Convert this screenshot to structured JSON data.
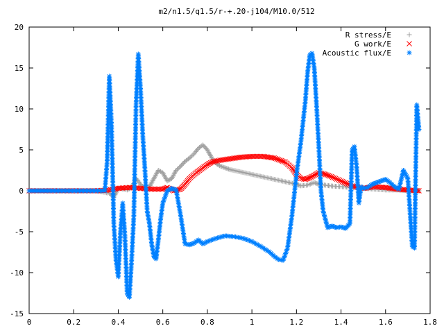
{
  "chart_data": {
    "type": "scatter",
    "title": "m2/n1.5/q1.5/r-+.20-j104/M10.0/512",
    "xlabel": "",
    "ylabel": "",
    "xlim": [
      0,
      1.8
    ],
    "ylim": [
      -15,
      20
    ],
    "x_ticks": [
      "0",
      "0.2",
      "0.4",
      "0.6",
      "0.8",
      "1",
      "1.2",
      "1.4",
      "1.6",
      "1.8"
    ],
    "y_ticks": [
      "20",
      "15",
      "10",
      "5",
      "0",
      "-5",
      "-10",
      "-15"
    ],
    "grid": false,
    "legend_position": "top-right",
    "series": [
      {
        "name": "R stress/E",
        "marker": "plus",
        "color": "#a0a0a0",
        "x": [
          0.0,
          0.1,
          0.2,
          0.3,
          0.36,
          0.38,
          0.4,
          0.42,
          0.44,
          0.46,
          0.48,
          0.5,
          0.52,
          0.54,
          0.56,
          0.58,
          0.6,
          0.62,
          0.64,
          0.66,
          0.68,
          0.7,
          0.72,
          0.74,
          0.76,
          0.78,
          0.8,
          0.82,
          0.84,
          0.86,
          0.88,
          0.9,
          0.95,
          1.0,
          1.05,
          1.1,
          1.15,
          1.2,
          1.22,
          1.25,
          1.28,
          1.3,
          1.35,
          1.4,
          1.45,
          1.5,
          1.55,
          1.6,
          1.65,
          1.7,
          1.75
        ],
        "y": [
          0.0,
          0.0,
          0.0,
          0.0,
          -0.3,
          -0.8,
          0.3,
          0.2,
          0.1,
          0.4,
          1.5,
          0.8,
          0.2,
          0.5,
          1.5,
          2.5,
          2.2,
          1.2,
          1.5,
          2.5,
          3.0,
          3.6,
          4.0,
          4.5,
          5.2,
          5.6,
          5.0,
          4.0,
          3.3,
          3.0,
          2.8,
          2.6,
          2.3,
          2.0,
          1.7,
          1.4,
          1.1,
          0.8,
          0.6,
          0.7,
          1.0,
          0.8,
          0.6,
          0.5,
          0.4,
          0.3,
          0.2,
          0.1,
          0.1,
          0.0,
          0.0
        ]
      },
      {
        "name": "G work/E",
        "marker": "cross",
        "color": "#ff0000",
        "x": [
          0.0,
          0.1,
          0.2,
          0.3,
          0.36,
          0.4,
          0.45,
          0.5,
          0.55,
          0.6,
          0.62,
          0.65,
          0.68,
          0.7,
          0.72,
          0.75,
          0.78,
          0.8,
          0.82,
          0.85,
          0.9,
          0.95,
          1.0,
          1.05,
          1.1,
          1.15,
          1.18,
          1.2,
          1.22,
          1.24,
          1.26,
          1.28,
          1.3,
          1.32,
          1.35,
          1.4,
          1.45,
          1.5,
          1.55,
          1.6,
          1.65,
          1.7,
          1.75
        ],
        "y": [
          0.0,
          0.0,
          0.0,
          0.0,
          0.1,
          0.3,
          0.4,
          0.3,
          0.2,
          0.2,
          0.4,
          0.0,
          0.2,
          0.8,
          1.5,
          2.2,
          2.8,
          3.2,
          3.5,
          3.7,
          3.9,
          4.1,
          4.2,
          4.2,
          4.0,
          3.5,
          2.8,
          2.0,
          1.5,
          1.4,
          1.6,
          1.9,
          2.2,
          2.1,
          1.8,
          1.2,
          0.6,
          0.3,
          0.5,
          0.4,
          0.2,
          0.1,
          0.0
        ]
      },
      {
        "name": "Acoustic flux/E",
        "marker": "star",
        "color": "#0080ff",
        "x": [
          0.0,
          0.05,
          0.1,
          0.15,
          0.2,
          0.25,
          0.3,
          0.34,
          0.35,
          0.36,
          0.37,
          0.38,
          0.39,
          0.4,
          0.41,
          0.42,
          0.43,
          0.44,
          0.45,
          0.46,
          0.47,
          0.48,
          0.49,
          0.5,
          0.51,
          0.52,
          0.53,
          0.54,
          0.55,
          0.56,
          0.57,
          0.58,
          0.59,
          0.6,
          0.62,
          0.64,
          0.66,
          0.68,
          0.7,
          0.72,
          0.74,
          0.76,
          0.78,
          0.8,
          0.84,
          0.88,
          0.92,
          0.96,
          1.0,
          1.04,
          1.08,
          1.1,
          1.12,
          1.14,
          1.16,
          1.18,
          1.2,
          1.22,
          1.24,
          1.25,
          1.26,
          1.27,
          1.28,
          1.29,
          1.3,
          1.31,
          1.32,
          1.33,
          1.34,
          1.36,
          1.38,
          1.4,
          1.42,
          1.44,
          1.45,
          1.46,
          1.47,
          1.48,
          1.49,
          1.5,
          1.52,
          1.54,
          1.56,
          1.58,
          1.6,
          1.62,
          1.64,
          1.66,
          1.68,
          1.7,
          1.72,
          1.73,
          1.74,
          1.75
        ],
        "y": [
          0.0,
          0.0,
          0.0,
          0.0,
          0.0,
          0.0,
          0.0,
          0.0,
          3.5,
          14.0,
          7.8,
          -4.0,
          -8.5,
          -10.5,
          -5.0,
          -1.5,
          -5.5,
          -12.5,
          -13.0,
          -8.5,
          -3.0,
          10.5,
          16.7,
          12.5,
          6.8,
          2.5,
          -2.5,
          -4.0,
          -6.5,
          -8.0,
          -8.3,
          -6.0,
          -3.5,
          -1.5,
          0.0,
          0.3,
          0.1,
          -3.0,
          -6.5,
          -6.6,
          -6.4,
          -6.0,
          -6.5,
          -6.2,
          -5.8,
          -5.5,
          -5.6,
          -5.8,
          -6.2,
          -6.8,
          -7.5,
          -8.0,
          -8.4,
          -8.5,
          -7.0,
          -3.0,
          2.0,
          6.0,
          11.0,
          14.5,
          16.6,
          16.8,
          15.0,
          10.5,
          5.5,
          0.0,
          -2.5,
          -3.5,
          -4.5,
          -4.3,
          -4.5,
          -4.4,
          -4.6,
          -4.0,
          5.0,
          5.4,
          3.0,
          -1.5,
          0.5,
          0.3,
          0.4,
          0.8,
          1.0,
          1.2,
          1.4,
          1.0,
          0.5,
          0.2,
          2.5,
          1.5,
          -6.8,
          -7.0,
          10.5,
          7.5
        ]
      }
    ]
  }
}
